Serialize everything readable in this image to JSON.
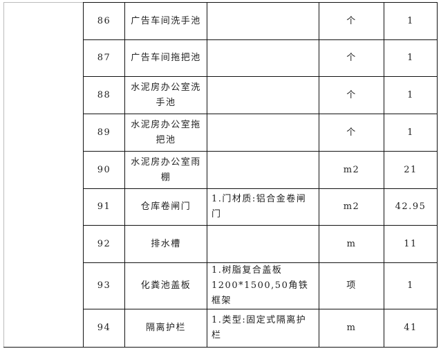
{
  "rows": [
    {
      "no": "86",
      "name": "广告车间洗手池",
      "spec": "",
      "unit": "个",
      "qty": "1"
    },
    {
      "no": "87",
      "name": "广告车间拖把池",
      "spec": "",
      "unit": "个",
      "qty": "1"
    },
    {
      "no": "88",
      "name": "水泥房办公室洗手池",
      "spec": "",
      "unit": "个",
      "qty": "1"
    },
    {
      "no": "89",
      "name": "水泥房办公室拖把池",
      "spec": "",
      "unit": "个",
      "qty": "1"
    },
    {
      "no": "90",
      "name": "水泥房办公室雨棚",
      "spec": "",
      "unit": "m2",
      "qty": "21"
    },
    {
      "no": "91",
      "name": "仓库卷闸门",
      "spec": "1.门材质:铝合金卷闸门",
      "unit": "m2",
      "qty": "42.95"
    },
    {
      "no": "92",
      "name": "排水槽",
      "spec": "",
      "unit": "m",
      "qty": "11"
    },
    {
      "no": "93",
      "name": "化粪池盖板",
      "spec": "1.树脂复合盖板1200*1500,50角铁框架",
      "unit": "项",
      "qty": "1"
    },
    {
      "no": "94",
      "name": "隔离护栏",
      "spec": "1.类型:固定式隔离护栏",
      "unit": "m",
      "qty": "41"
    }
  ]
}
